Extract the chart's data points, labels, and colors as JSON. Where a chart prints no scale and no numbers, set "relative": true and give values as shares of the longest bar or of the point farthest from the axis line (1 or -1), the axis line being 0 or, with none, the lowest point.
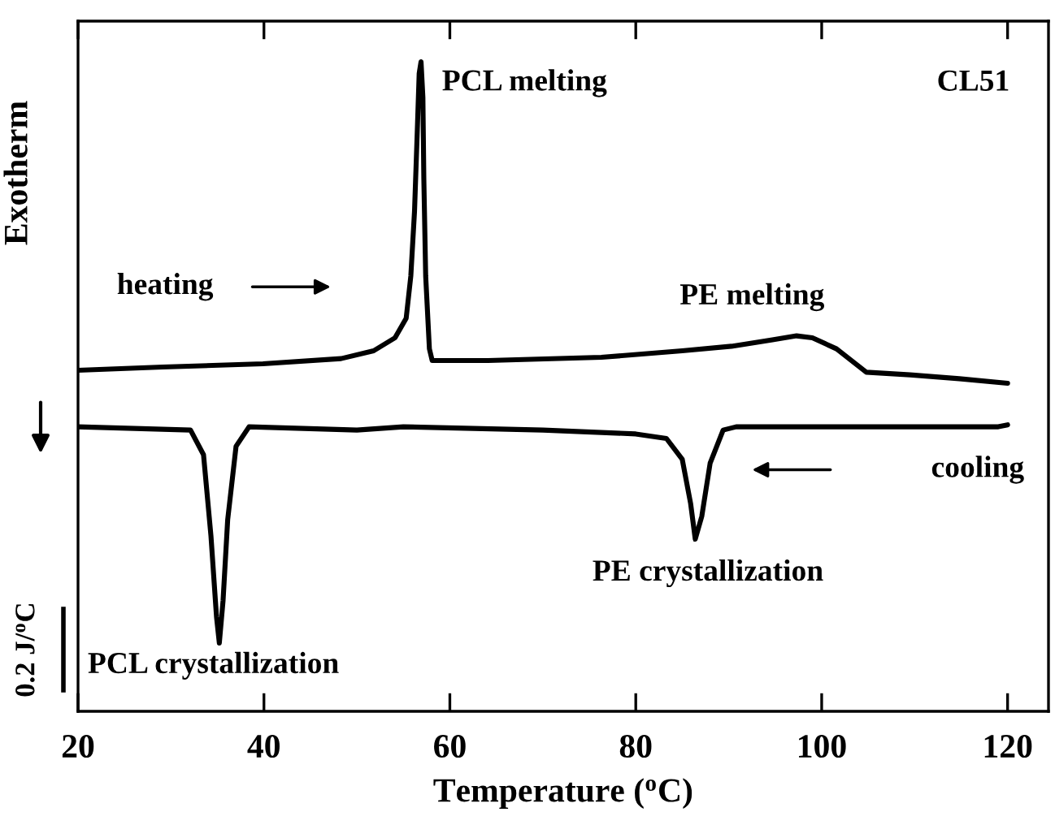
{
  "chart_data": {
    "type": "line",
    "relative": true,
    "xlabel": "Temperature ($^{o}$C)",
    "ylabel": "Exotherm",
    "xlim": [
      20,
      124.4
    ],
    "xticks": [
      20,
      40,
      60,
      80,
      100,
      120
    ],
    "grid": false,
    "marker": "none",
    "line_style": "solid",
    "annotations": [
      "PCL melting",
      "CL51",
      "heating",
      "PE melting",
      "cooling",
      "PE crystallization",
      "PCL crystallization",
      "0.2 J/$^{o}$C"
    ],
    "series": [
      {
        "color": "#000000",
        "x": [
          20,
          29.1,
          39.9,
          48.3,
          51.8,
          54.1,
          55.3,
          55.8,
          56.2,
          56.5,
          56.7,
          56.9,
          57.1,
          57.2,
          57.4,
          57.8,
          58.1,
          64.1,
          76.3,
          85.0,
          90.3,
          94.7,
          97.3,
          99.0,
          101.6,
          104.8,
          109.5,
          114.8,
          120.0
        ],
        "values": [
          0.525,
          0.53,
          0.535,
          0.543,
          0.555,
          0.575,
          0.605,
          0.67,
          0.77,
          0.895,
          0.982,
          1.0,
          0.945,
          0.82,
          0.67,
          0.558,
          0.54,
          0.54,
          0.545,
          0.555,
          0.562,
          0.572,
          0.578,
          0.575,
          0.558,
          0.522,
          0.518,
          0.512,
          0.505
        ]
      },
      {
        "color": "#000000",
        "x": [
          20,
          32.1,
          33.5,
          34.3,
          34.9,
          35.2,
          35.6,
          36.1,
          37.0,
          38.4,
          50.0,
          55.0,
          70.0,
          80.0,
          83.3,
          85.0,
          85.9,
          86.4,
          87.1,
          88.0,
          89.4,
          90.8,
          105.0,
          119.0,
          120.0
        ],
        "values": [
          0.438,
          0.433,
          0.395,
          0.27,
          0.145,
          0.105,
          0.17,
          0.295,
          0.408,
          0.438,
          0.433,
          0.438,
          0.433,
          0.427,
          0.42,
          0.388,
          0.32,
          0.265,
          0.3,
          0.382,
          0.433,
          0.438,
          0.438,
          0.438,
          0.441
        ]
      }
    ]
  }
}
